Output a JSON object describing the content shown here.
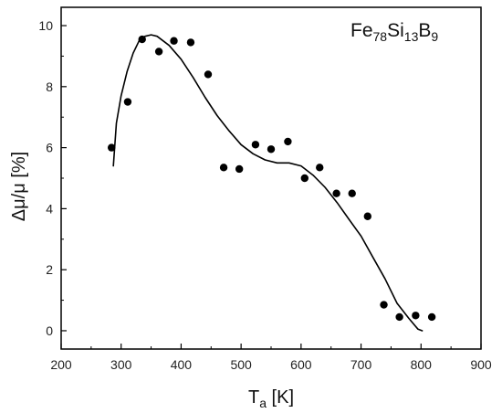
{
  "chart_data": {
    "type": "scatter",
    "annotation": {
      "parts": [
        {
          "text": "Fe",
          "sub": false
        },
        {
          "text": "78",
          "sub": true
        },
        {
          "text": "Si",
          "sub": false
        },
        {
          "text": "13",
          "sub": true
        },
        {
          "text": "B",
          "sub": false
        },
        {
          "text": "9",
          "sub": true
        }
      ]
    },
    "xlabel": {
      "main": "T",
      "sub": "a",
      "unit": " [K]"
    },
    "ylabel": "Δμ/μ [%]",
    "xlim": [
      200,
      900
    ],
    "ylim": [
      -0.6,
      10.6
    ],
    "xticks": [
      200,
      300,
      400,
      500,
      600,
      700,
      800,
      900
    ],
    "yticks": [
      0,
      2,
      4,
      6,
      8,
      10
    ],
    "grid": false,
    "series": [
      {
        "type": "scatter",
        "color": "#000000",
        "x": [
          284,
          311,
          335,
          363,
          388,
          416,
          445,
          471,
          497,
          524,
          550,
          578,
          606,
          631,
          659,
          685,
          711,
          738,
          764,
          791,
          818
        ],
        "y": [
          6.0,
          7.5,
          9.55,
          9.15,
          9.5,
          9.45,
          8.4,
          5.35,
          5.3,
          6.1,
          5.95,
          6.2,
          5.0,
          5.35,
          4.5,
          4.5,
          3.75,
          0.85,
          0.45,
          0.5,
          0.45
        ]
      },
      {
        "type": "line",
        "color": "#000000",
        "x": [
          287,
          292,
          300,
          310,
          320,
          330,
          340,
          350,
          360,
          370,
          380,
          400,
          420,
          440,
          460,
          480,
          500,
          520,
          540,
          560,
          580,
          600,
          620,
          640,
          660,
          680,
          700,
          720,
          740,
          760,
          780,
          795,
          802
        ],
        "y": [
          5.4,
          6.8,
          7.7,
          8.5,
          9.1,
          9.5,
          9.65,
          9.7,
          9.65,
          9.5,
          9.35,
          8.9,
          8.3,
          7.65,
          7.05,
          6.55,
          6.1,
          5.8,
          5.6,
          5.5,
          5.5,
          5.4,
          5.1,
          4.7,
          4.2,
          3.65,
          3.1,
          2.4,
          1.7,
          0.9,
          0.4,
          0.05,
          0.0
        ]
      }
    ]
  }
}
